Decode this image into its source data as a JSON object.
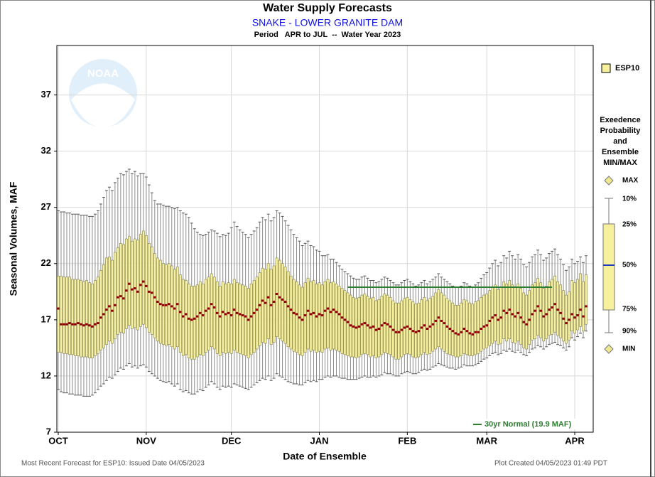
{
  "chart_data": {
    "type": "box",
    "title": "Water Supply Forecasts",
    "subtitle": "SNAKE - LOWER GRANITE DAM",
    "period": "Period   APR to JUL  --  Water Year 2023",
    "xlabel": "Date of Ensemble",
    "ylabel": "Seasonal Volumes, MAF",
    "footer_left": "Most Recent Forecast for ESP10: Issued Date 04/05/2023",
    "footer_right": "Plot Created 04/05/2023 01:49 PDT",
    "logo_text": "NOAA",
    "ylim": [
      7,
      41.4
    ],
    "yticks": [
      7,
      12,
      17,
      22,
      27,
      32,
      37
    ],
    "xlim": [
      -0.5,
      188.5
    ],
    "xticks": [
      {
        "value": 0,
        "label": "OCT"
      },
      {
        "value": 31,
        "label": "NOV"
      },
      {
        "value": 61,
        "label": "DEC"
      },
      {
        "value": 92,
        "label": "JAN"
      },
      {
        "value": 123,
        "label": "FEB"
      },
      {
        "value": 151,
        "label": "MAR"
      },
      {
        "value": 182,
        "label": "APR"
      }
    ],
    "grid": true,
    "x": [
      0,
      1,
      2,
      3,
      4,
      5,
      6,
      7,
      8,
      9,
      10,
      11,
      12,
      13,
      14,
      15,
      16,
      17,
      18,
      19,
      20,
      21,
      22,
      23,
      24,
      25,
      26,
      27,
      28,
      29,
      30,
      31,
      32,
      33,
      34,
      35,
      36,
      37,
      38,
      39,
      40,
      41,
      42,
      43,
      44,
      45,
      46,
      47,
      48,
      49,
      50,
      51,
      52,
      53,
      54,
      55,
      56,
      57,
      58,
      59,
      60,
      61,
      62,
      63,
      64,
      65,
      66,
      67,
      68,
      69,
      70,
      71,
      72,
      73,
      74,
      75,
      76,
      77,
      78,
      79,
      80,
      81,
      82,
      83,
      84,
      85,
      86,
      87,
      88,
      89,
      90,
      91,
      92,
      93,
      94,
      95,
      96,
      97,
      98,
      99,
      100,
      101,
      102,
      103,
      104,
      105,
      106,
      107,
      108,
      109,
      110,
      111,
      112,
      113,
      114,
      115,
      116,
      117,
      118,
      119,
      120,
      121,
      122,
      123,
      124,
      125,
      126,
      127,
      128,
      129,
      130,
      131,
      132,
      133,
      134,
      135,
      136,
      137,
      138,
      139,
      140,
      141,
      142,
      143,
      144,
      145,
      146,
      147,
      148,
      149,
      150,
      151,
      152,
      153,
      154,
      155,
      156,
      157,
      158,
      159,
      160,
      161,
      162,
      163,
      164,
      165,
      166,
      167,
      168,
      169,
      170,
      171,
      172,
      173,
      174,
      175,
      176,
      177,
      178,
      179,
      180,
      181,
      182,
      183,
      184,
      185,
      186
    ],
    "series": [
      {
        "name": "ESP10",
        "color": "#f7f09c",
        "median_color": "#8b0000",
        "whisker_color": "#8a8a8a",
        "p90": [
          26.7,
          26.6,
          26.6,
          26.5,
          26.5,
          26.4,
          26.4,
          26.4,
          26.3,
          26.3,
          26.3,
          26.2,
          26.2,
          26.4,
          26.7,
          27.3,
          27.9,
          28.5,
          28.8,
          28.5,
          29.2,
          29.6,
          30.0,
          29.9,
          30.2,
          30.4,
          30.0,
          30.2,
          29.8,
          30.0,
          30.0,
          29.7,
          29.0,
          28.3,
          27.6,
          27.3,
          27.3,
          27.2,
          27.1,
          27.1,
          27.0,
          26.9,
          27.0,
          26.7,
          26.5,
          26.4,
          26.1,
          25.6,
          25.1,
          24.8,
          24.6,
          24.5,
          24.6,
          24.8,
          25.0,
          24.9,
          24.7,
          24.4,
          24.6,
          24.5,
          24.7,
          25.2,
          25.7,
          25.3,
          25.0,
          24.8,
          24.6,
          24.3,
          24.6,
          24.9,
          25.2,
          25.7,
          26.1,
          25.9,
          26.4,
          25.8,
          26.1,
          26.7,
          26.5,
          26.2,
          25.8,
          25.4,
          25.0,
          24.6,
          24.3,
          24.0,
          23.6,
          23.8,
          24.0,
          23.6,
          23.5,
          23.2,
          23.1,
          22.7,
          22.7,
          22.8,
          22.4,
          22.4,
          22.1,
          21.8,
          21.5,
          21.3,
          21.1,
          20.9,
          20.7,
          20.6,
          20.6,
          20.8,
          20.9,
          20.7,
          20.5,
          20.5,
          20.3,
          20.4,
          20.6,
          20.8,
          20.7,
          20.5,
          20.3,
          20.1,
          20.1,
          20.3,
          20.5,
          20.6,
          20.4,
          20.2,
          20.0,
          20.1,
          20.3,
          20.5,
          20.2,
          20.4,
          20.6,
          20.8,
          21.1,
          20.8,
          20.6,
          20.4,
          20.2,
          20.0,
          19.9,
          19.9,
          20.0,
          20.3,
          20.2,
          20.0,
          19.9,
          20.1,
          20.3,
          20.7,
          21.0,
          21.2,
          21.6,
          22.0,
          22.3,
          21.8,
          22.1,
          22.7,
          22.5,
          23.1,
          22.7,
          22.4,
          22.8,
          22.4,
          21.9,
          21.7,
          22.1,
          22.6,
          22.8,
          23.2,
          22.8,
          22.3,
          22.5,
          22.9,
          23.1,
          23.3,
          22.8,
          22.4,
          21.9,
          21.4,
          21.7,
          22.4,
          22.0,
          22.2,
          22.6,
          22.1,
          22.7
        ],
        "p75": [
          20.9,
          20.9,
          20.8,
          20.8,
          20.8,
          20.6,
          20.6,
          20.6,
          20.5,
          20.4,
          20.5,
          20.3,
          20.2,
          20.5,
          20.8,
          21.4,
          21.9,
          22.5,
          22.6,
          22.3,
          23.0,
          23.4,
          23.8,
          23.7,
          24.2,
          24.4,
          24.0,
          24.2,
          24.1,
          24.6,
          24.9,
          24.5,
          23.8,
          23.5,
          22.9,
          22.5,
          22.3,
          22.0,
          21.9,
          22.0,
          21.8,
          21.5,
          21.7,
          21.0,
          20.6,
          20.5,
          20.2,
          20.0,
          20.0,
          20.1,
          20.4,
          20.2,
          20.6,
          20.8,
          21.1,
          20.8,
          20.4,
          20.0,
          20.4,
          20.2,
          20.3,
          20.2,
          20.6,
          20.3,
          20.2,
          20.1,
          20.0,
          19.8,
          20.2,
          20.5,
          20.8,
          21.2,
          21.6,
          21.5,
          22.0,
          21.5,
          21.8,
          22.5,
          22.3,
          22.0,
          21.7,
          21.3,
          20.9,
          20.6,
          20.4,
          20.1,
          19.9,
          20.3,
          20.7,
          20.4,
          20.5,
          20.2,
          20.3,
          20.1,
          20.4,
          20.6,
          20.3,
          20.4,
          20.2,
          20.0,
          19.8,
          19.6,
          19.4,
          19.2,
          19.0,
          18.9,
          19.0,
          19.2,
          19.3,
          19.1,
          18.9,
          19.0,
          18.7,
          18.8,
          19.1,
          19.3,
          19.2,
          19.0,
          18.7,
          18.5,
          18.5,
          18.7,
          18.9,
          19.0,
          18.8,
          18.6,
          18.4,
          18.5,
          18.8,
          19.0,
          18.7,
          18.9,
          19.1,
          19.4,
          19.7,
          19.4,
          19.2,
          18.9,
          18.7,
          18.5,
          18.3,
          18.3,
          18.5,
          18.8,
          18.7,
          18.5,
          18.4,
          18.6,
          18.7,
          19.0,
          19.2,
          19.3,
          19.6,
          19.9,
          20.1,
          19.7,
          19.9,
          20.4,
          20.2,
          20.5,
          20.1,
          19.9,
          20.2,
          19.8,
          19.4,
          19.2,
          19.6,
          20.1,
          20.3,
          20.7,
          20.3,
          19.8,
          20.0,
          20.4,
          20.6,
          20.9,
          20.4,
          20.1,
          19.6,
          19.2,
          19.5,
          20.5,
          20.3,
          20.6,
          21.1,
          20.4,
          21.0
        ],
        "p50": [
          18.0,
          16.6,
          16.6,
          16.6,
          16.7,
          16.6,
          16.6,
          16.7,
          16.6,
          16.5,
          16.6,
          16.5,
          16.4,
          16.6,
          16.7,
          17.2,
          17.5,
          17.9,
          18.2,
          17.8,
          18.3,
          19.0,
          19.1,
          18.9,
          19.6,
          20.2,
          19.7,
          19.8,
          19.5,
          20.1,
          20.4,
          20.0,
          19.5,
          19.4,
          19.0,
          18.6,
          18.4,
          18.3,
          18.3,
          18.4,
          18.2,
          18.0,
          18.4,
          17.7,
          17.3,
          17.5,
          17.1,
          17.0,
          17.1,
          17.3,
          17.6,
          17.4,
          17.8,
          18.0,
          18.4,
          18.1,
          17.6,
          17.3,
          17.7,
          17.5,
          17.6,
          17.4,
          17.9,
          17.6,
          17.5,
          17.4,
          17.3,
          17.0,
          17.3,
          17.6,
          17.9,
          18.3,
          18.7,
          18.5,
          19.0,
          18.3,
          18.6,
          19.3,
          19.0,
          18.8,
          18.6,
          18.2,
          17.9,
          17.6,
          17.5,
          17.2,
          17.0,
          17.4,
          17.8,
          17.5,
          17.6,
          17.3,
          17.5,
          17.4,
          17.8,
          18.0,
          17.7,
          17.9,
          17.7,
          17.5,
          17.2,
          17.0,
          16.8,
          16.5,
          16.4,
          16.3,
          16.4,
          16.6,
          16.7,
          16.5,
          16.3,
          16.4,
          16.1,
          16.2,
          16.5,
          16.7,
          16.6,
          16.4,
          16.1,
          15.9,
          15.9,
          16.1,
          16.3,
          16.4,
          16.2,
          16.0,
          15.9,
          16.0,
          16.3,
          16.5,
          16.2,
          16.4,
          16.6,
          16.9,
          17.2,
          16.9,
          16.7,
          16.4,
          16.2,
          16.0,
          15.8,
          15.7,
          15.9,
          16.2,
          16.0,
          15.8,
          15.7,
          15.9,
          15.9,
          16.2,
          16.4,
          16.5,
          16.9,
          17.2,
          17.4,
          17.0,
          17.2,
          17.8,
          17.6,
          17.9,
          17.5,
          17.3,
          17.6,
          17.2,
          16.8,
          16.6,
          17.0,
          17.5,
          17.8,
          18.2,
          17.8,
          17.3,
          17.5,
          17.9,
          18.1,
          18.4,
          17.9,
          17.6,
          17.1,
          16.7,
          17.0,
          17.5,
          17.2,
          17.4,
          17.9,
          17.3,
          18.2
        ],
        "p25": [
          14.1,
          14.1,
          14.0,
          14.0,
          13.9,
          13.9,
          13.8,
          13.8,
          13.7,
          13.7,
          13.7,
          13.6,
          13.6,
          13.8,
          14.0,
          14.3,
          14.5,
          14.8,
          15.1,
          14.9,
          15.3,
          15.7,
          15.9,
          15.8,
          16.2,
          16.5,
          16.2,
          16.3,
          16.1,
          16.4,
          16.6,
          16.3,
          15.9,
          15.7,
          15.4,
          15.1,
          14.9,
          14.8,
          14.7,
          14.8,
          14.6,
          14.4,
          14.6,
          14.1,
          13.8,
          13.9,
          13.6,
          13.5,
          13.5,
          13.7,
          13.9,
          13.8,
          14.1,
          14.3,
          14.6,
          14.4,
          14.0,
          13.8,
          14.1,
          14.0,
          14.1,
          14.0,
          14.3,
          14.1,
          14.0,
          13.9,
          13.8,
          13.6,
          13.9,
          14.1,
          14.4,
          14.7,
          15.0,
          14.9,
          15.3,
          14.8,
          15.0,
          15.5,
          15.3,
          15.1,
          14.9,
          14.6,
          14.4,
          14.2,
          14.1,
          13.9,
          13.8,
          14.1,
          14.4,
          14.2,
          14.3,
          14.1,
          14.2,
          14.1,
          14.4,
          14.5,
          14.3,
          14.4,
          14.3,
          14.2,
          14.0,
          13.9,
          13.8,
          13.7,
          13.7,
          13.6,
          13.7,
          13.9,
          14.0,
          13.9,
          13.7,
          13.8,
          13.6,
          13.7,
          13.9,
          14.1,
          14.0,
          13.9,
          13.7,
          13.5,
          13.5,
          13.7,
          13.9,
          14.0,
          13.9,
          13.7,
          13.6,
          13.7,
          13.9,
          14.1,
          13.9,
          14.0,
          14.2,
          14.4,
          14.6,
          14.4,
          14.2,
          14.0,
          13.9,
          13.8,
          13.7,
          13.7,
          13.8,
          14.0,
          13.9,
          13.8,
          13.8,
          13.9,
          14.0,
          14.2,
          14.4,
          14.5,
          14.7,
          14.9,
          15.1,
          14.8,
          14.9,
          15.3,
          15.1,
          15.3,
          15.0,
          14.9,
          15.1,
          14.8,
          14.5,
          14.4,
          14.8,
          15.2,
          15.3,
          15.6,
          15.4,
          15.1,
          15.3,
          15.6,
          15.7,
          15.9,
          15.6,
          15.4,
          15.1,
          14.9,
          15.2,
          16.0,
          15.8,
          16.1,
          16.4,
          16.0,
          16.6
        ],
        "p10": [
          10.8,
          10.6,
          10.5,
          10.5,
          10.4,
          10.4,
          10.3,
          10.3,
          10.3,
          10.2,
          10.2,
          10.2,
          10.3,
          10.5,
          10.8,
          11.1,
          11.3,
          11.6,
          11.9,
          11.8,
          12.1,
          12.4,
          12.7,
          12.6,
          12.9,
          13.1,
          12.8,
          12.9,
          12.7,
          12.9,
          13.0,
          12.8,
          12.4,
          12.2,
          12.0,
          11.8,
          11.6,
          11.5,
          11.4,
          11.5,
          11.3,
          11.1,
          11.3,
          10.8,
          10.6,
          10.7,
          10.5,
          10.4,
          10.4,
          10.6,
          10.8,
          10.7,
          11.0,
          11.2,
          11.5,
          11.3,
          11.0,
          10.8,
          11.1,
          11.0,
          11.1,
          11.0,
          11.3,
          11.2,
          11.1,
          11.0,
          10.9,
          10.8,
          11.0,
          11.2,
          11.4,
          11.6,
          11.8,
          11.7,
          12.0,
          11.6,
          11.8,
          12.2,
          12.0,
          11.9,
          11.7,
          11.5,
          11.4,
          11.3,
          11.3,
          11.2,
          11.2,
          11.4,
          11.6,
          11.5,
          11.6,
          11.5,
          11.7,
          11.7,
          11.9,
          12.0,
          11.9,
          12.0,
          12.0,
          11.9,
          11.8,
          11.8,
          11.7,
          11.7,
          11.7,
          11.7,
          11.8,
          11.9,
          12.0,
          11.9,
          11.9,
          12.0,
          11.9,
          12.0,
          12.1,
          12.3,
          12.2,
          12.2,
          12.1,
          12.0,
          12.0,
          12.2,
          12.3,
          12.4,
          12.3,
          12.2,
          12.2,
          12.3,
          12.5,
          12.6,
          12.5,
          12.6,
          12.8,
          12.9,
          13.1,
          13.0,
          12.9,
          12.8,
          12.7,
          12.7,
          12.6,
          12.7,
          12.8,
          13.0,
          12.9,
          12.9,
          12.9,
          13.0,
          13.1,
          13.3,
          13.5,
          13.6,
          13.8,
          14.0,
          14.1,
          13.9,
          14.0,
          14.3,
          14.2,
          14.4,
          14.2,
          14.1,
          14.3,
          14.1,
          13.9,
          13.8,
          14.1,
          14.4,
          14.5,
          14.7,
          14.6,
          14.4,
          14.6,
          14.8,
          14.9,
          15.0,
          14.8,
          14.7,
          14.5,
          14.3,
          14.6,
          15.4,
          15.2,
          15.5,
          15.8,
          15.4,
          16.0
        ]
      }
    ],
    "normal": {
      "label": "30yr Normal (19.9 MAF)",
      "value": 19.9,
      "x": [
        102,
        174
      ],
      "color": "#2e7d32"
    },
    "legend_title": [
      "Exeedence",
      "Probability",
      "and",
      "Ensemble",
      "MIN/MAX"
    ],
    "legend_labels": [
      "MAX",
      "10%",
      "25%",
      "50%",
      "75%",
      "90%",
      "MIN"
    ]
  }
}
